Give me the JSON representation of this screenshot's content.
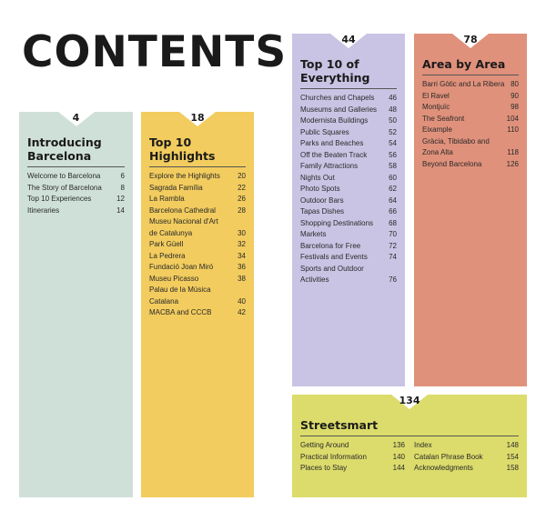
{
  "title": "CONTENTS",
  "colors": {
    "intro": "#cfe0d8",
    "highlights": "#f2cc5e",
    "everything": "#c9c4e4",
    "area": "#e0917b",
    "streetsmart": "#dcdc6c"
  },
  "sections": [
    {
      "page": "4",
      "title": "Introducing Barcelona",
      "items": [
        {
          "label": "Welcome to Barcelona",
          "page": "6"
        },
        {
          "label": "The Story of Barcelona",
          "page": "8"
        },
        {
          "label": "Top 10 Experiences",
          "page": "12"
        },
        {
          "label": "Itineraries",
          "page": "14"
        }
      ]
    },
    {
      "page": "18",
      "title": "Top 10 Highlights",
      "items": [
        {
          "label": "Explore the Highlights",
          "page": "20"
        },
        {
          "label": "Sagrada Família",
          "page": "22"
        },
        {
          "label": "La Rambla",
          "page": "26"
        },
        {
          "label": "Barcelona Cathedral",
          "page": "28"
        },
        {
          "label": "Museu Nacional d'Art\n   de Catalunya",
          "page": "30"
        },
        {
          "label": "Park Güell",
          "page": "32"
        },
        {
          "label": "La Pedrera",
          "page": "34"
        },
        {
          "label": "Fundació Joan Miró",
          "page": "36"
        },
        {
          "label": "Museu Picasso",
          "page": "38"
        },
        {
          "label": "Palau de la Música Catalana",
          "page": "40"
        },
        {
          "label": "MACBA and CCCB",
          "page": "42"
        }
      ]
    },
    {
      "page": "44",
      "title": "Top 10 of Everything",
      "items": [
        {
          "label": "Churches and Chapels",
          "page": "46"
        },
        {
          "label": "Museums and Galleries",
          "page": "48"
        },
        {
          "label": "Modernista Buildings",
          "page": "50"
        },
        {
          "label": "Public Squares",
          "page": "52"
        },
        {
          "label": "Parks and Beaches",
          "page": "54"
        },
        {
          "label": "Off the Beaten Track",
          "page": "56"
        },
        {
          "label": "Family Attractions",
          "page": "58"
        },
        {
          "label": "Nights Out",
          "page": "60"
        },
        {
          "label": "Photo Spots",
          "page": "62"
        },
        {
          "label": "Outdoor Bars",
          "page": "64"
        },
        {
          "label": "Tapas Dishes",
          "page": "66"
        },
        {
          "label": "Shopping Destinations",
          "page": "68"
        },
        {
          "label": "Markets",
          "page": "70"
        },
        {
          "label": "Barcelona for Free",
          "page": "72"
        },
        {
          "label": "Festivals and Events",
          "page": "74"
        },
        {
          "label": "Sports and Outdoor\n   Activities",
          "page": "76"
        }
      ]
    },
    {
      "page": "78",
      "title": "Area by Area",
      "items": [
        {
          "label": "Barri Gòtic and La Ribera",
          "page": "80"
        },
        {
          "label": "El Ravel",
          "page": "90"
        },
        {
          "label": "Montjuïc",
          "page": "98"
        },
        {
          "label": "The Seafront",
          "page": "104"
        },
        {
          "label": "Eixample",
          "page": "110"
        },
        {
          "label": "Gràcia, Tibidabo and\n   Zona Alta",
          "page": "118"
        },
        {
          "label": "Beyond Barcelona",
          "page": "126"
        }
      ]
    },
    {
      "page": "134",
      "title": "Streetsmart",
      "items": [
        {
          "label": "Getting Around",
          "page": "136"
        },
        {
          "label": "Practical Information",
          "page": "140"
        },
        {
          "label": "Places to Stay",
          "page": "144"
        },
        {
          "label": "Index",
          "page": "148"
        },
        {
          "label": "Catalan Phrase Book",
          "page": "154"
        },
        {
          "label": "Acknowledgments",
          "page": "158"
        }
      ]
    }
  ]
}
